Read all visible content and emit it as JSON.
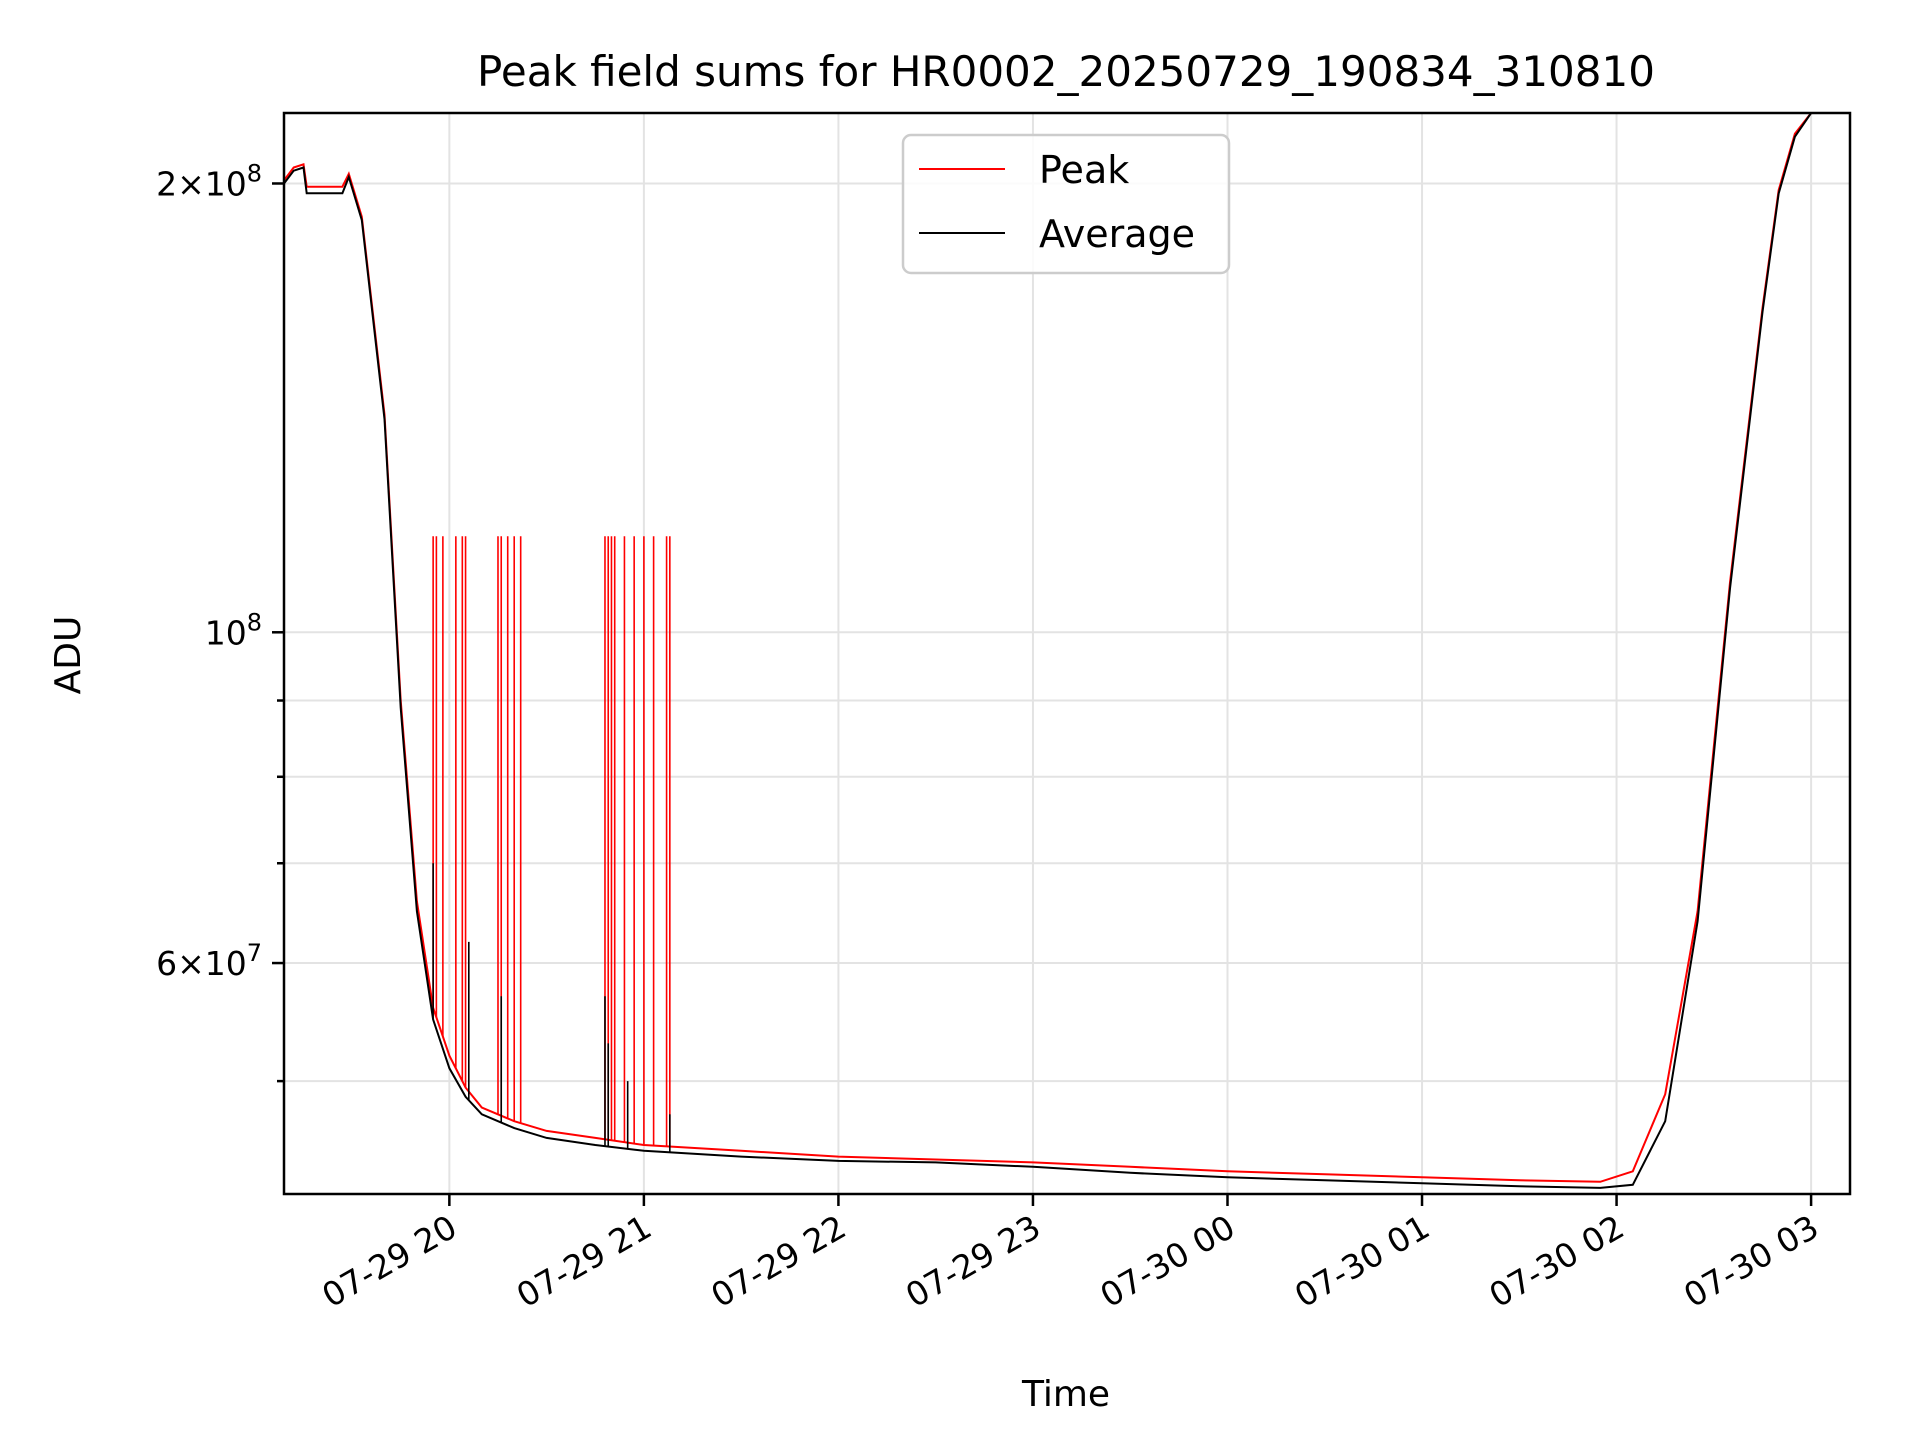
{
  "chart_data": {
    "type": "line",
    "title": "Peak field sums for HR0002_20250729_190834_310810",
    "xlabel": "Time",
    "ylabel": "ADU",
    "yscale": "log",
    "xlim": [
      "2025-07-29 19:09",
      "2025-07-30 03:12"
    ],
    "ylim": [
      42000000,
      223000000
    ],
    "x_ticks": [
      "07-29 20",
      "07-29 21",
      "07-29 22",
      "07-29 23",
      "07-30 00",
      "07-30 01",
      "07-30 02",
      "07-30 03"
    ],
    "y_ticks": [
      {
        "value": 200000000,
        "mant": "2",
        "exp": "8"
      },
      {
        "value": 100000000,
        "mant": "",
        "exp": "8"
      },
      {
        "value": 60000000,
        "mant": "6",
        "exp": "7"
      }
    ],
    "y_minor_ticks": [
      50000000,
      70000000,
      80000000,
      90000000
    ],
    "grid": true,
    "legend_position": "top-center",
    "series": [
      {
        "name": "Peak",
        "color": "#ff0000",
        "x": [
          "2025-07-29 19:09",
          "2025-07-29 19:12",
          "2025-07-29 19:15",
          "2025-07-29 19:16",
          "2025-07-29 19:20",
          "2025-07-29 19:27",
          "2025-07-29 19:29",
          "2025-07-29 19:33",
          "2025-07-29 19:40",
          "2025-07-29 19:45",
          "2025-07-29 19:50",
          "2025-07-29 19:55",
          "2025-07-29 20:00",
          "2025-07-29 20:05",
          "2025-07-29 20:10",
          "2025-07-29 20:20",
          "2025-07-29 20:30",
          "2025-07-29 20:45",
          "2025-07-29 21:00",
          "2025-07-29 21:30",
          "2025-07-29 22:00",
          "2025-07-29 22:30",
          "2025-07-29 23:00",
          "2025-07-29 23:30",
          "2025-07-30 00:00",
          "2025-07-30 00:30",
          "2025-07-30 01:00",
          "2025-07-30 01:30",
          "2025-07-30 01:55",
          "2025-07-30 02:05",
          "2025-07-30 02:15",
          "2025-07-30 02:25",
          "2025-07-30 02:35",
          "2025-07-30 02:45",
          "2025-07-30 02:50",
          "2025-07-30 02:55",
          "2025-07-30 03:00",
          "2025-07-30 03:05"
        ],
        "y": [
          201000000,
          205000000,
          206000000,
          199000000,
          199000000,
          199000000,
          203000000,
          190000000,
          140000000,
          90000000,
          66000000,
          56000000,
          52000000,
          49500000,
          48000000,
          47000000,
          46300000,
          45800000,
          45300000,
          44900000,
          44500000,
          44300000,
          44100000,
          43800000,
          43500000,
          43300000,
          43100000,
          42900000,
          42800000,
          43500000,
          49000000,
          65000000,
          108000000,
          165000000,
          198000000,
          216000000,
          223000000,
          223000000
        ],
        "spikes": [
          {
            "x": "2025-07-29 19:55",
            "y": 116000000
          },
          {
            "x": "2025-07-29 19:56",
            "y": 116000000
          },
          {
            "x": "2025-07-29 19:58",
            "y": 116000000
          },
          {
            "x": "2025-07-29 20:02",
            "y": 116000000
          },
          {
            "x": "2025-07-29 20:04",
            "y": 116000000
          },
          {
            "x": "2025-07-29 20:05",
            "y": 116000000
          },
          {
            "x": "2025-07-29 20:15",
            "y": 116000000
          },
          {
            "x": "2025-07-29 20:16",
            "y": 116000000
          },
          {
            "x": "2025-07-29 20:18",
            "y": 116000000
          },
          {
            "x": "2025-07-29 20:20",
            "y": 116000000
          },
          {
            "x": "2025-07-29 20:22",
            "y": 116000000
          },
          {
            "x": "2025-07-29 20:48",
            "y": 116000000
          },
          {
            "x": "2025-07-29 20:49",
            "y": 116000000
          },
          {
            "x": "2025-07-29 20:50",
            "y": 116000000
          },
          {
            "x": "2025-07-29 20:51",
            "y": 116000000
          },
          {
            "x": "2025-07-29 20:54",
            "y": 116000000
          },
          {
            "x": "2025-07-29 20:57",
            "y": 116000000
          },
          {
            "x": "2025-07-29 21:00",
            "y": 116000000
          },
          {
            "x": "2025-07-29 21:03",
            "y": 116000000
          },
          {
            "x": "2025-07-29 21:07",
            "y": 116000000
          },
          {
            "x": "2025-07-29 21:08",
            "y": 116000000
          }
        ]
      },
      {
        "name": "Average",
        "color": "#000000",
        "x": [
          "2025-07-29 19:09",
          "2025-07-29 19:12",
          "2025-07-29 19:15",
          "2025-07-29 19:16",
          "2025-07-29 19:20",
          "2025-07-29 19:27",
          "2025-07-29 19:29",
          "2025-07-29 19:33",
          "2025-07-29 19:40",
          "2025-07-29 19:45",
          "2025-07-29 19:50",
          "2025-07-29 19:55",
          "2025-07-29 20:00",
          "2025-07-29 20:05",
          "2025-07-29 20:10",
          "2025-07-29 20:20",
          "2025-07-29 20:30",
          "2025-07-29 20:45",
          "2025-07-29 21:00",
          "2025-07-29 21:30",
          "2025-07-29 22:00",
          "2025-07-29 22:30",
          "2025-07-29 23:00",
          "2025-07-29 23:30",
          "2025-07-30 00:00",
          "2025-07-30 00:30",
          "2025-07-30 01:00",
          "2025-07-30 01:30",
          "2025-07-30 01:55",
          "2025-07-30 02:05",
          "2025-07-30 02:15",
          "2025-07-30 02:25",
          "2025-07-30 02:35",
          "2025-07-30 02:45",
          "2025-07-30 02:50",
          "2025-07-30 02:55",
          "2025-07-30 03:00",
          "2025-07-30 03:05"
        ],
        "y": [
          200000000,
          204000000,
          205000000,
          197000000,
          197000000,
          197000000,
          202000000,
          189000000,
          139000000,
          89000000,
          65000000,
          55000000,
          51000000,
          48800000,
          47500000,
          46500000,
          45800000,
          45300000,
          44900000,
          44500000,
          44200000,
          44100000,
          43800000,
          43400000,
          43100000,
          42900000,
          42700000,
          42500000,
          42400000,
          42600000,
          47000000,
          64000000,
          107000000,
          164000000,
          197000000,
          215000000,
          223000000,
          223000000
        ],
        "spikes": [
          {
            "x": "2025-07-29 19:55",
            "y": 70000000
          },
          {
            "x": "2025-07-29 20:06",
            "y": 62000000
          },
          {
            "x": "2025-07-29 20:16",
            "y": 57000000
          },
          {
            "x": "2025-07-29 20:48",
            "y": 57000000
          },
          {
            "x": "2025-07-29 20:49",
            "y": 53000000
          },
          {
            "x": "2025-07-29 20:55",
            "y": 50000000
          },
          {
            "x": "2025-07-29 21:08",
            "y": 47500000
          }
        ]
      }
    ]
  }
}
